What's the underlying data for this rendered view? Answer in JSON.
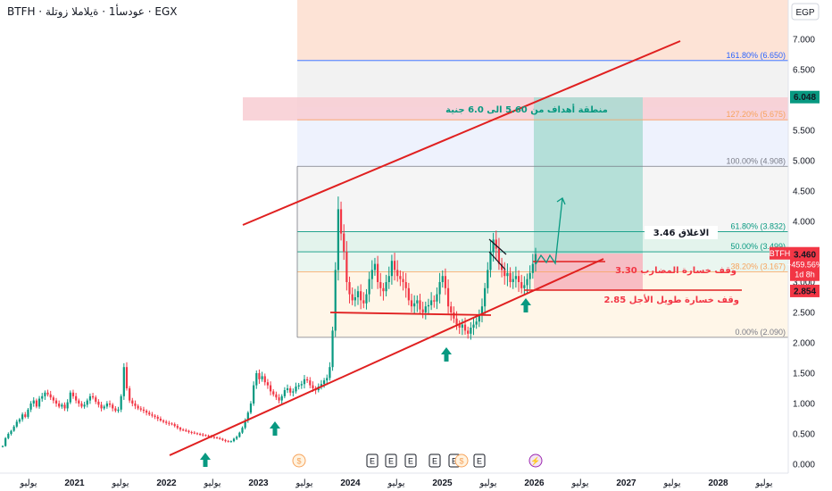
{
  "header": {
    "title": "BTFH · عودسأ1 · ةيلاملا زوتلة · EGX"
  },
  "axis": {
    "currency": "EGP"
  },
  "colors": {
    "up": "#089981",
    "down": "#f23645",
    "channel": "#e02020",
    "label_red": "#f23645",
    "label_dark": "#131722"
  },
  "chart_data": {
    "type": "candlestick",
    "x_ticks": [
      "يوليو",
      "2021",
      "يوليو",
      "2022",
      "يوليو",
      "2023",
      "يوليو",
      "2024",
      "يوليو",
      "2025",
      "يوليو",
      "2026",
      "يوليو",
      "2027",
      "يوليو",
      "2028",
      "يوليو"
    ],
    "y_ticks": [
      "7.000",
      "6.500",
      "6.000",
      "5.500",
      "5.000",
      "4.500",
      "4.000",
      "3.500",
      "3.000",
      "2.500",
      "2.000",
      "1.500",
      "1.000",
      "0.500",
      "0.000"
    ],
    "ylim": [
      0,
      7.35
    ],
    "fib_levels": [
      {
        "label": "161.80% (6.650)",
        "value": 6.65,
        "color": "#2962ff"
      },
      {
        "label": "127.20% (5.675)",
        "value": 5.675,
        "color": "#f7a35c"
      },
      {
        "label": "100.00% (4.908)",
        "value": 4.908,
        "color": "#787b86"
      },
      {
        "label": "61.80% (3.832)",
        "value": 3.832,
        "color": "#089981"
      },
      {
        "label": "50.00% (3.499)",
        "value": 3.499,
        "color": "#089981"
      },
      {
        "label": "38.20% (3.167)",
        "value": 3.167,
        "color": "#f7a35c"
      },
      {
        "label": "0.00% (2.090)",
        "value": 2.09,
        "color": "#787b86"
      }
    ],
    "target_zone": {
      "label": "منطقة أهداف من 5.60 الى 6.0 جنية",
      "low": 5.6,
      "high": 6.0
    },
    "annotations": {
      "close": "الاغلاق 3.46",
      "stop_speculator": "وقف خسارة المضارب 3.30",
      "stop_long": "وقف خسارة طويل الأجل 2.85"
    },
    "price_tags": [
      {
        "text": "6.048",
        "value": 6.048,
        "color": "#089981"
      },
      {
        "text": "2.854",
        "value": 2.854,
        "color": "#f23645"
      }
    ],
    "last_price": {
      "symbol": "BTFH",
      "price": "3.460",
      "change": "+459.56%",
      "countdown": "1d 8h",
      "value": 3.46
    },
    "event_markers": [
      "$",
      "$",
      "E",
      "E",
      "E",
      "E",
      "E",
      "E",
      "E",
      "⚡"
    ],
    "close_series": [
      0.3,
      0.43,
      0.5,
      0.55,
      0.62,
      0.7,
      0.74,
      0.82,
      0.78,
      0.9,
      1.0,
      1.05,
      0.95,
      1.08,
      1.12,
      1.18,
      1.15,
      1.1,
      1.05,
      1.0,
      0.95,
      0.98,
      0.92,
      1.02,
      1.18,
      1.12,
      1.05,
      1.0,
      0.95,
      0.98,
      1.05,
      1.12,
      1.1,
      1.03,
      0.98,
      0.92,
      0.95,
      1.0,
      0.98,
      0.92,
      0.88,
      0.9,
      1.12,
      1.6,
      1.25,
      1.05,
      1.0,
      0.96,
      0.92,
      0.9,
      0.88,
      0.85,
      0.82,
      0.8,
      0.78,
      0.75,
      0.72,
      0.7,
      0.68,
      0.67,
      0.66,
      0.63,
      0.6,
      0.57,
      0.56,
      0.55,
      0.53,
      0.52,
      0.51,
      0.5,
      0.49,
      0.48,
      0.47,
      0.46,
      0.45,
      0.44,
      0.43,
      0.42,
      0.4,
      0.38,
      0.37,
      0.38,
      0.42,
      0.45,
      0.52,
      0.6,
      0.72,
      0.85,
      1.0,
      1.3,
      1.5,
      1.4,
      1.45,
      1.35,
      1.3,
      1.2,
      1.15,
      1.1,
      1.05,
      1.12,
      1.22,
      1.25,
      1.18,
      1.2,
      1.28,
      1.3,
      1.32,
      1.4,
      1.38,
      1.3,
      1.25,
      1.22,
      1.28,
      1.32,
      1.38,
      1.42,
      1.6,
      2.2,
      3.2,
      4.2,
      3.8,
      3.5,
      3.0,
      2.8,
      2.7,
      2.75,
      2.85,
      2.7,
      2.65,
      2.8,
      3.05,
      3.2,
      3.3,
      3.0,
      2.9,
      2.85,
      3.0,
      3.1,
      3.35,
      3.2,
      3.1,
      3.05,
      3.0,
      2.9,
      2.7,
      2.6,
      2.65,
      2.7,
      2.55,
      2.5,
      2.6,
      2.62,
      2.7,
      2.68,
      2.8,
      3.0,
      3.1,
      2.9,
      2.6,
      2.5,
      2.4,
      2.3,
      2.25,
      2.3,
      2.2,
      2.15,
      2.25,
      2.3,
      2.35,
      2.45,
      2.6,
      2.9,
      3.2,
      3.5,
      3.7,
      3.55,
      3.3,
      3.2,
      3.1,
      3.15,
      3.0,
      3.05,
      3.1,
      3.0,
      2.9,
      2.95,
      3.05,
      3.15,
      3.3,
      3.46
    ]
  }
}
